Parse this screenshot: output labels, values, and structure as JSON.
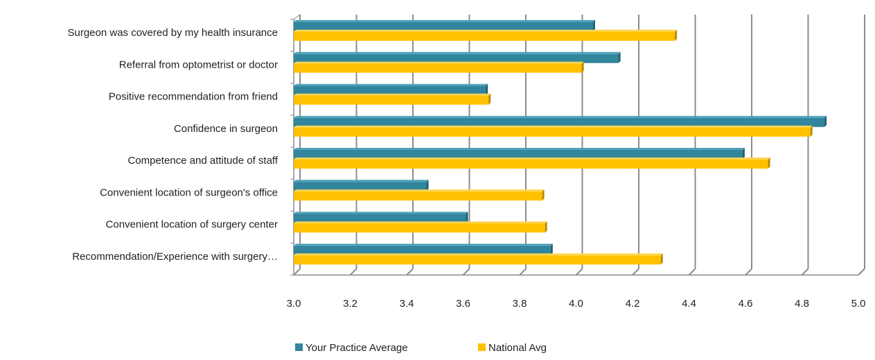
{
  "chart_data": {
    "type": "bar",
    "orientation": "horizontal",
    "categories": [
      "Surgeon was covered by my health insurance",
      "Referral from optometrist or doctor",
      "Positive recommendation from friend",
      "Confidence in surgeon",
      "Competence and attitude of staff",
      "Convenient location of surgeon's office",
      "Convenient location of surgery center",
      "Recommendation/Experience with surgery…"
    ],
    "series": [
      {
        "name": "Your Practice Average",
        "color": "#31859c",
        "values": [
          4.06,
          4.15,
          3.68,
          4.88,
          4.59,
          3.47,
          3.61,
          3.91
        ]
      },
      {
        "name": "National Avg",
        "color": "#ffc000",
        "values": [
          4.35,
          4.02,
          3.69,
          4.83,
          4.68,
          3.88,
          3.89,
          4.3
        ]
      }
    ],
    "xlim": [
      3.0,
      5.0
    ],
    "xticks": [
      "3.0",
      "3.2",
      "3.4",
      "3.6",
      "3.8",
      "4.0",
      "4.2",
      "4.4",
      "4.6",
      "4.8",
      "5.0"
    ],
    "grid": true,
    "legend_position": "bottom"
  }
}
